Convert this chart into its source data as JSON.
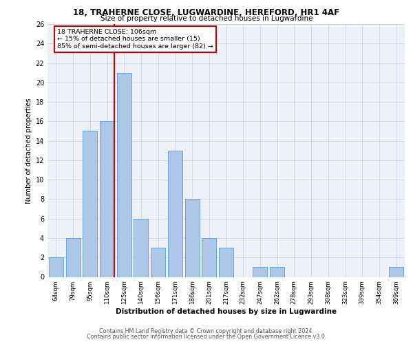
{
  "title1": "18, TRAHERNE CLOSE, LUGWARDINE, HEREFORD, HR1 4AF",
  "title2": "Size of property relative to detached houses in Lugwardine",
  "xlabel": "Distribution of detached houses by size in Lugwardine",
  "ylabel": "Number of detached properties",
  "categories": [
    "64sqm",
    "79sqm",
    "95sqm",
    "110sqm",
    "125sqm",
    "140sqm",
    "156sqm",
    "171sqm",
    "186sqm",
    "201sqm",
    "217sqm",
    "232sqm",
    "247sqm",
    "262sqm",
    "278sqm",
    "293sqm",
    "308sqm",
    "323sqm",
    "339sqm",
    "354sqm",
    "369sqm"
  ],
  "values": [
    2,
    4,
    15,
    16,
    21,
    6,
    3,
    13,
    8,
    4,
    3,
    0,
    1,
    1,
    0,
    0,
    0,
    0,
    0,
    0,
    1
  ],
  "bar_color": "#aec6e8",
  "bar_edge_color": "#5a9fd4",
  "vline_color": "#cc0000",
  "annotation_box_text": "18 TRAHERNE CLOSE: 106sqm\n← 15% of detached houses are smaller (15)\n85% of semi-detached houses are larger (82) →",
  "annotation_box_color": "#cc0000",
  "ylim": [
    0,
    26
  ],
  "yticks": [
    0,
    2,
    4,
    6,
    8,
    10,
    12,
    14,
    16,
    18,
    20,
    22,
    24,
    26
  ],
  "grid_color": "#d0d8e8",
  "bg_color": "#eef2f8",
  "footer1": "Contains HM Land Registry data © Crown copyright and database right 2024.",
  "footer2": "Contains public sector information licensed under the Open Government Licence v3.0."
}
